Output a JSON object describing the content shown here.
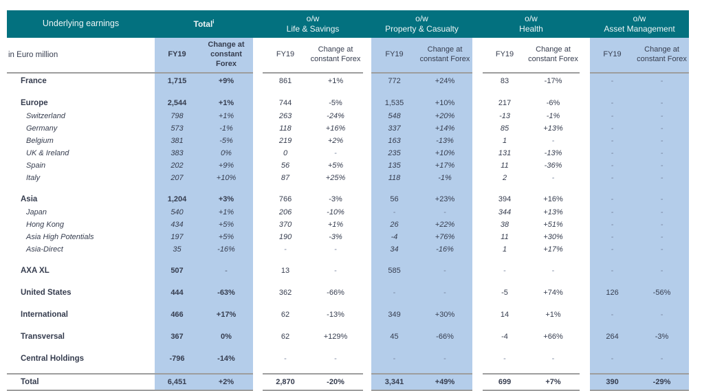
{
  "table": {
    "title": "Underlying earnings",
    "unit_label": "in Euro million",
    "fy_label": "FY19",
    "change_label": "Change at constant Forex",
    "groups": [
      {
        "id": "total",
        "line1": "Total",
        "line2": "",
        "footnote": "i",
        "shaded": true,
        "bold_title": true
      },
      {
        "id": "life-savings",
        "line1": "o/w",
        "line2": "Life & Savings",
        "footnote": "",
        "shaded": false,
        "bold_title": false
      },
      {
        "id": "property-casualty",
        "line1": "o/w",
        "line2": "Property & Casualty",
        "footnote": "",
        "shaded": true,
        "bold_title": false
      },
      {
        "id": "health",
        "line1": "o/w",
        "line2": "Health",
        "footnote": "",
        "shaded": false,
        "bold_title": false
      },
      {
        "id": "asset-management",
        "line1": "o/w",
        "line2": "Asset  Management",
        "footnote": "",
        "shaded": true,
        "bold_title": false
      }
    ],
    "rows": [
      {
        "type": "section",
        "label": "France",
        "cells": [
          "1,715",
          "+9%",
          "861",
          "+1%",
          "772",
          "+24%",
          "83",
          "-17%",
          "-",
          "-"
        ]
      },
      {
        "type": "spacer"
      },
      {
        "type": "section",
        "label": "Europe",
        "cells": [
          "2,544",
          "+1%",
          "744",
          "-5%",
          "1,535",
          "+10%",
          "217",
          "-6%",
          "-",
          "-"
        ]
      },
      {
        "type": "sub",
        "label": "Switzerland",
        "cells": [
          "798",
          "+1%",
          "263",
          "-24%",
          "548",
          "+20%",
          "-13",
          "-1%",
          "-",
          "-"
        ]
      },
      {
        "type": "sub",
        "label": "Germany",
        "cells": [
          "573",
          "-1%",
          "118",
          "+16%",
          "337",
          "+14%",
          "85",
          "+13%",
          "-",
          "-"
        ]
      },
      {
        "type": "sub",
        "label": "Belgium",
        "cells": [
          "381",
          "-5%",
          "219",
          "+2%",
          "163",
          "-13%",
          "1",
          "-",
          "-",
          "-"
        ]
      },
      {
        "type": "sub",
        "label": "UK & Ireland",
        "cells": [
          "383",
          "0%",
          "0",
          "-",
          "235",
          "+10%",
          "131",
          "-13%",
          "-",
          "-"
        ]
      },
      {
        "type": "sub",
        "label": "Spain",
        "cells": [
          "202",
          "+9%",
          "56",
          "+5%",
          "135",
          "+17%",
          "11",
          "-36%",
          "-",
          "-"
        ]
      },
      {
        "type": "sub",
        "label": "Italy",
        "cells": [
          "207",
          "+10%",
          "87",
          "+25%",
          "118",
          "-1%",
          "2",
          "-",
          "-",
          "-"
        ]
      },
      {
        "type": "spacer"
      },
      {
        "type": "section",
        "label": "Asia",
        "cells": [
          "1,204",
          "+3%",
          "766",
          "-3%",
          "56",
          "+23%",
          "394",
          "+16%",
          "-",
          "-"
        ]
      },
      {
        "type": "sub",
        "label": "Japan",
        "cells": [
          "540",
          "+1%",
          "206",
          "-10%",
          "-",
          "-",
          "344",
          "+13%",
          "-",
          "-"
        ]
      },
      {
        "type": "sub",
        "label": "Hong Kong",
        "cells": [
          "434",
          "+5%",
          "370",
          "+1%",
          "26",
          "+22%",
          "38",
          "+51%",
          "-",
          "-"
        ]
      },
      {
        "type": "sub",
        "label": "Asia High Potentials",
        "cells": [
          "197",
          "+5%",
          "190",
          "-3%",
          "-4",
          "+76%",
          "11",
          "+30%",
          "-",
          "-"
        ]
      },
      {
        "type": "sub",
        "label": "Asia-Direct",
        "cells": [
          "35",
          "-16%",
          "-",
          "-",
          "34",
          "-16%",
          "1",
          "+17%",
          "-",
          "-"
        ]
      },
      {
        "type": "spacer"
      },
      {
        "type": "section",
        "label": "AXA XL",
        "cells": [
          "507",
          "-",
          "13",
          "-",
          "585",
          "-",
          "-",
          "-",
          "-",
          "-"
        ]
      },
      {
        "type": "spacer"
      },
      {
        "type": "section",
        "label": "United States",
        "cells": [
          "444",
          "-63%",
          "362",
          "-66%",
          "-",
          "-",
          "-5",
          "+74%",
          "126",
          "-56%"
        ]
      },
      {
        "type": "spacer"
      },
      {
        "type": "section",
        "label": "International",
        "cells": [
          "466",
          "+17%",
          "62",
          "-13%",
          "349",
          "+30%",
          "14",
          "+1%",
          "-",
          "-"
        ]
      },
      {
        "type": "spacer"
      },
      {
        "type": "section",
        "label": "Transversal",
        "cells": [
          "367",
          "0%",
          "62",
          "+129%",
          "45",
          "-66%",
          "-4",
          "+66%",
          "264",
          "-3%"
        ]
      },
      {
        "type": "spacer"
      },
      {
        "type": "section",
        "label": "Central Holdings",
        "cells": [
          "-796",
          "-14%",
          "-",
          "-",
          "-",
          "-",
          "-",
          "-",
          "-",
          "-"
        ]
      },
      {
        "type": "spacer"
      },
      {
        "type": "total",
        "label": "Total",
        "cells": [
          "6,451",
          "+2%",
          "2,870",
          "-20%",
          "3,341",
          "+49%",
          "699",
          "+7%",
          "390",
          "-29%"
        ]
      }
    ],
    "colors": {
      "header_teal": "#03717f",
      "shade_blue": "#b4cdea",
      "text_navy": "#353c4e",
      "rule_gray": "#9d9d9d"
    }
  }
}
